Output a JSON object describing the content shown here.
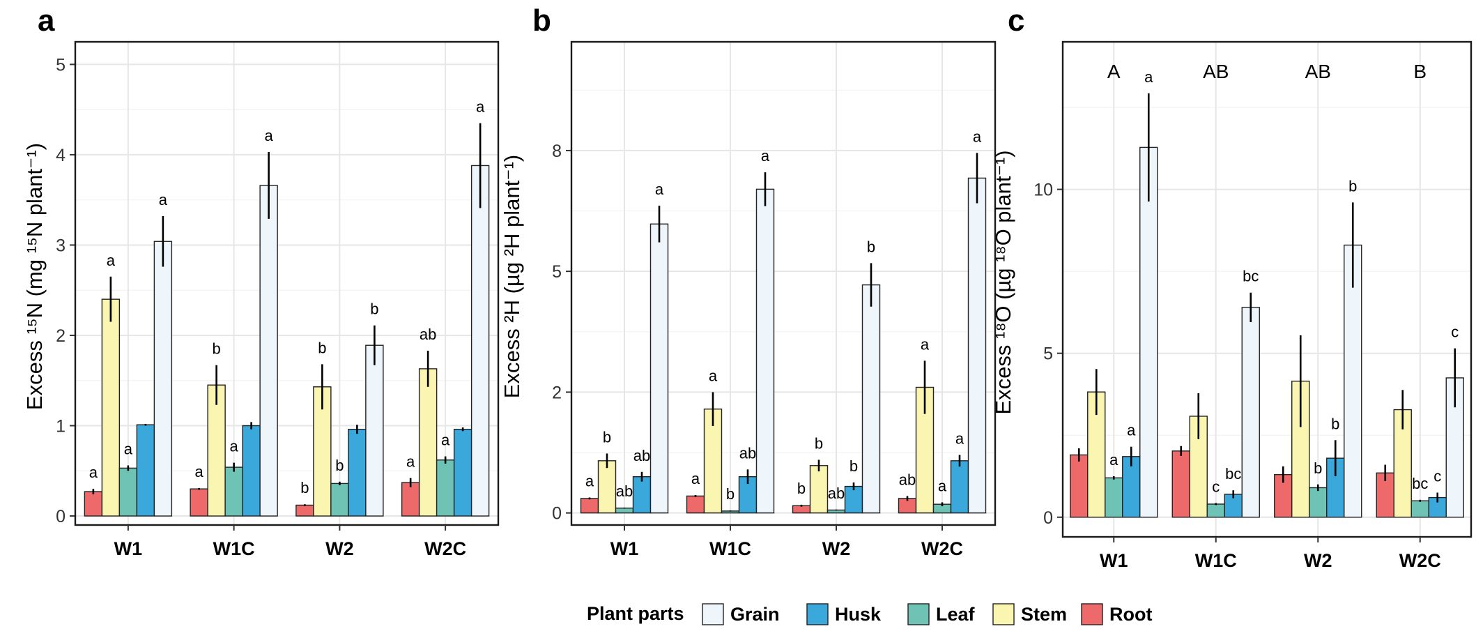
{
  "colors": {
    "Grain": "#EEF6FB",
    "Husk": "#3AA8DB",
    "Leaf": "#6EC3B4",
    "Stem": "#FBF5B2",
    "Root": "#EE6A6A"
  },
  "legend": {
    "title": "Plant parts",
    "items": [
      "Grain",
      "Husk",
      "Leaf",
      "Stem",
      "Root"
    ]
  },
  "chart_data": [
    {
      "type": "bar",
      "panel": "a",
      "categories": [
        "W1",
        "W1C",
        "W2",
        "W2C"
      ],
      "parts_order": [
        "Root",
        "Stem",
        "Leaf",
        "Husk",
        "Grain"
      ],
      "ylabel": "Excess ¹⁵N (mg ¹⁵N plant⁻¹)",
      "ylim": [
        -0.1,
        5.25
      ],
      "yticks": [
        0,
        1,
        2,
        3,
        4,
        5
      ],
      "ytick_labels": [
        "0",
        "1",
        "2",
        "3",
        "4",
        "5"
      ],
      "grid": true,
      "series": [
        {
          "name": "Root",
          "values": [
            0.27,
            0.3,
            0.12,
            0.37
          ],
          "errors": [
            0.03,
            0.01,
            0.01,
            0.05
          ],
          "labels": [
            "a",
            "a",
            "b",
            "a"
          ]
        },
        {
          "name": "Stem",
          "values": [
            2.4,
            1.45,
            1.43,
            1.63
          ],
          "errors": [
            0.25,
            0.22,
            0.25,
            0.2
          ],
          "labels": [
            "a",
            "b",
            "b",
            "ab"
          ]
        },
        {
          "name": "Leaf",
          "values": [
            0.53,
            0.54,
            0.36,
            0.62
          ],
          "errors": [
            0.03,
            0.05,
            0.02,
            0.04
          ],
          "labels": [
            "a",
            "a",
            "b",
            "a"
          ]
        },
        {
          "name": "Husk",
          "values": [
            1.01,
            1.0,
            0.96,
            0.96
          ],
          "errors": [
            0.01,
            0.04,
            0.05,
            0.02
          ],
          "labels": [
            "",
            "",
            "",
            ""
          ]
        },
        {
          "name": "Grain",
          "values": [
            3.04,
            3.66,
            1.89,
            3.88
          ],
          "errors": [
            0.28,
            0.37,
            0.22,
            0.47
          ],
          "labels": [
            "a",
            "a",
            "b",
            "a"
          ]
        }
      ],
      "group_labels": []
    },
    {
      "type": "bar",
      "panel": "b",
      "categories": [
        "W1",
        "W1C",
        "W2",
        "W2C"
      ],
      "parts_order": [
        "Root",
        "Stem",
        "Leaf",
        "Husk",
        "Grain"
      ],
      "ylabel": "Excess ²H (µg ²H plant⁻¹)",
      "ylim": [
        -0.25,
        9.75
      ],
      "yticks": [
        0,
        2.5,
        5,
        7.5
      ],
      "ytick_labels": [
        "0",
        "2",
        "5",
        "8"
      ],
      "grid": true,
      "series": [
        {
          "name": "Root",
          "values": [
            0.3,
            0.35,
            0.15,
            0.3
          ],
          "errors": [
            0.02,
            0.02,
            0.02,
            0.05
          ],
          "labels": [
            "a",
            "a",
            "b",
            "ab"
          ]
        },
        {
          "name": "Stem",
          "values": [
            1.08,
            2.15,
            0.98,
            2.6
          ],
          "errors": [
            0.15,
            0.35,
            0.12,
            0.55
          ],
          "labels": [
            "b",
            "a",
            "b",
            "a"
          ]
        },
        {
          "name": "Leaf",
          "values": [
            0.1,
            0.04,
            0.06,
            0.18
          ],
          "errors": [
            0.01,
            0.01,
            0.01,
            0.04
          ],
          "labels": [
            "ab",
            "b",
            "ab",
            "a"
          ]
        },
        {
          "name": "Husk",
          "values": [
            0.75,
            0.75,
            0.55,
            1.08
          ],
          "errors": [
            0.1,
            0.15,
            0.08,
            0.12
          ],
          "labels": [
            "ab",
            "ab",
            "b",
            "a"
          ]
        },
        {
          "name": "Grain",
          "values": [
            5.98,
            6.7,
            4.72,
            6.93
          ],
          "errors": [
            0.38,
            0.35,
            0.45,
            0.52
          ],
          "labels": [
            "a",
            "a",
            "b",
            "a"
          ]
        }
      ],
      "group_labels": []
    },
    {
      "type": "bar",
      "panel": "c",
      "categories": [
        "W1",
        "W1C",
        "W2",
        "W2C"
      ],
      "parts_order": [
        "Root",
        "Stem",
        "Leaf",
        "Husk",
        "Grain"
      ],
      "ylabel": "Excess ¹⁸O (µg ¹⁸O plant⁻¹)",
      "ylim": [
        -0.6,
        14.5
      ],
      "yticks": [
        0,
        5,
        10
      ],
      "ytick_labels": [
        "0",
        "5",
        "10"
      ],
      "grid": true,
      "series": [
        {
          "name": "Root",
          "values": [
            1.9,
            2.02,
            1.3,
            1.35
          ],
          "errors": [
            0.2,
            0.15,
            0.25,
            0.25
          ],
          "labels": [
            "",
            "",
            "",
            ""
          ]
        },
        {
          "name": "Stem",
          "values": [
            3.82,
            3.08,
            4.15,
            3.28
          ],
          "errors": [
            0.7,
            0.7,
            1.4,
            0.6
          ],
          "labels": [
            "",
            "",
            "",
            ""
          ]
        },
        {
          "name": "Leaf",
          "values": [
            1.2,
            0.4,
            0.9,
            0.5
          ],
          "errors": [
            0.05,
            0.03,
            0.1,
            0.03
          ],
          "labels": [
            "a",
            "c",
            "b",
            "bc"
          ]
        },
        {
          "name": "Husk",
          "values": [
            1.85,
            0.7,
            1.8,
            0.6
          ],
          "errors": [
            0.3,
            0.12,
            0.55,
            0.15
          ],
          "labels": [
            "a",
            "bc",
            "b",
            "c"
          ]
        },
        {
          "name": "Grain",
          "values": [
            11.28,
            6.4,
            8.3,
            4.25
          ],
          "errors": [
            1.65,
            0.45,
            1.3,
            0.9
          ],
          "labels": [
            "a",
            "bc",
            "b",
            "c"
          ]
        }
      ],
      "group_labels": [
        "A",
        "AB",
        "AB",
        "B"
      ]
    }
  ]
}
